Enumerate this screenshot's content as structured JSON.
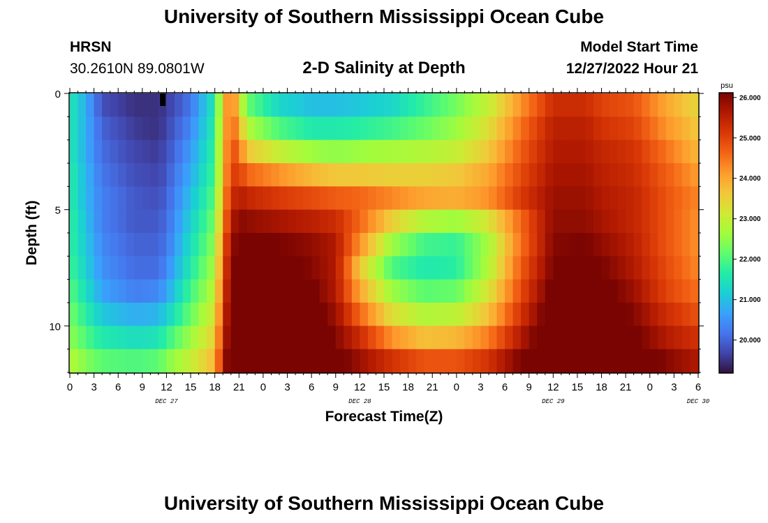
{
  "header": {
    "title": "University of Southern Mississippi Ocean Cube",
    "station": "HRSN",
    "coordinates": "30.2610N  89.0801W",
    "subtitle": "2-D Salinity at Depth",
    "model_start_label": "Model Start Time",
    "model_start_value": "12/27/2022 Hour 21"
  },
  "footer": {
    "title": "University of Southern Mississippi Ocean Cube"
  },
  "chart_data": {
    "type": "heatmap",
    "title": "2-D Salinity at Depth",
    "xlabel": "Forecast Time(Z)",
    "ylabel": "Depth (ft)",
    "x_tick_labels": [
      "0",
      "3",
      "6",
      "9",
      "12",
      "15",
      "18",
      "21",
      "0",
      "3",
      "6",
      "9",
      "12",
      "15",
      "18",
      "21",
      "0",
      "3",
      "6",
      "9",
      "12",
      "15",
      "18",
      "21",
      "0",
      "3",
      "6"
    ],
    "x_day_labels": [
      {
        "label": "DEC 27",
        "at_hour": 12
      },
      {
        "label": "DEC 28",
        "at_hour": 36
      },
      {
        "label": "DEC 29",
        "at_hour": 60
      },
      {
        "label": "DEC 30",
        "at_hour": 78
      }
    ],
    "x_range_hours": [
      0,
      78
    ],
    "y_range_ft": [
      0,
      12
    ],
    "y_ticks": [
      "0",
      "5",
      "10"
    ],
    "colorbar": {
      "unit": "psu",
      "range": [
        19.2,
        26.1
      ],
      "tick_values": [
        20,
        21,
        22,
        23,
        24,
        25,
        26
      ],
      "tick_labels": [
        "20.000",
        "21.000",
        "22.000",
        "23.000",
        "24.000",
        "25.000",
        "26.000"
      ],
      "colors": [
        "#30123b",
        "#4145ab",
        "#4675ed",
        "#39a2fc",
        "#1bcfd4",
        "#24eca6",
        "#61fc6c",
        "#a4fc3b",
        "#d1e834",
        "#f3c63a",
        "#fe9b2d",
        "#f36315",
        "#d93806",
        "#b11901",
        "#7a0402"
      ]
    },
    "salinity_key_hours": [
      0,
      2,
      4,
      8,
      11,
      12,
      15,
      18,
      19,
      20,
      21,
      22,
      26,
      30,
      33,
      36,
      40,
      44,
      48,
      52,
      56,
      60,
      64,
      66,
      70,
      74,
      78
    ],
    "salinity_depth_levels_ft": [
      0.25,
      1.25,
      2.25,
      3.25,
      4.25,
      5.25,
      6.25,
      7.25,
      8.25,
      9.25,
      10.25,
      11.25
    ],
    "salinity_values": [
      [
        21.6,
        20.8,
        19.8,
        19.5,
        19.5,
        19.6,
        20.2,
        21.6,
        23.5,
        24.8,
        23.3,
        22.2,
        21.3,
        21.0,
        21.0,
        21.1,
        21.3,
        21.8,
        22.3,
        23.0,
        24.2,
        25.3,
        25.3,
        25.0,
        24.8,
        24.0,
        23.4
      ],
      [
        21.6,
        20.8,
        20.0,
        19.6,
        19.5,
        19.7,
        20.4,
        21.7,
        23.6,
        24.8,
        24.0,
        22.8,
        22.0,
        21.6,
        21.6,
        21.7,
        21.9,
        22.2,
        22.6,
        23.3,
        24.5,
        25.5,
        25.5,
        25.2,
        25.0,
        24.2,
        23.6
      ],
      [
        21.6,
        20.8,
        20.1,
        19.7,
        19.6,
        19.8,
        20.6,
        21.8,
        23.7,
        24.9,
        24.6,
        23.6,
        23.0,
        22.6,
        22.5,
        22.6,
        22.7,
        22.8,
        23.0,
        23.6,
        24.7,
        25.6,
        25.6,
        25.4,
        25.2,
        24.5,
        23.8
      ],
      [
        21.7,
        20.9,
        20.2,
        19.8,
        19.7,
        19.9,
        20.8,
        21.9,
        23.8,
        25.0,
        25.1,
        24.6,
        24.2,
        23.8,
        23.6,
        23.6,
        23.5,
        23.5,
        23.6,
        24.0,
        24.9,
        25.7,
        25.7,
        25.5,
        25.3,
        24.7,
        24.1
      ],
      [
        21.7,
        20.9,
        20.3,
        19.9,
        19.8,
        20.0,
        21.0,
        22.1,
        24.0,
        25.2,
        25.6,
        25.4,
        25.1,
        24.9,
        24.7,
        24.6,
        24.3,
        24.0,
        23.9,
        24.2,
        25.1,
        25.8,
        25.8,
        25.6,
        25.4,
        24.8,
        24.3
      ],
      [
        21.8,
        21.0,
        20.3,
        19.9,
        19.9,
        20.1,
        21.2,
        22.3,
        24.2,
        25.5,
        26.0,
        25.9,
        25.7,
        25.5,
        25.3,
        24.6,
        23.5,
        22.8,
        22.6,
        23.2,
        24.6,
        25.9,
        25.9,
        25.7,
        25.4,
        24.8,
        24.2
      ],
      [
        21.8,
        21.1,
        20.4,
        20.0,
        20.0,
        20.2,
        21.4,
        22.5,
        24.5,
        25.8,
        26.2,
        26.2,
        26.1,
        25.9,
        25.6,
        24.2,
        22.6,
        21.9,
        21.8,
        22.7,
        24.5,
        26.0,
        26.1,
        25.9,
        25.5,
        24.8,
        24.2
      ],
      [
        21.9,
        21.2,
        20.5,
        20.1,
        20.1,
        20.4,
        21.6,
        22.7,
        24.7,
        26.0,
        26.4,
        26.5,
        26.4,
        26.0,
        25.6,
        23.6,
        22.0,
        21.6,
        21.7,
        22.8,
        24.7,
        26.1,
        26.3,
        26.1,
        25.6,
        24.9,
        24.3
      ],
      [
        22.1,
        21.4,
        20.7,
        20.3,
        20.4,
        20.7,
        21.9,
        22.9,
        24.9,
        26.1,
        26.6,
        26.7,
        26.6,
        26.2,
        25.6,
        24.0,
        22.6,
        22.1,
        22.2,
        23.2,
        24.9,
        26.3,
        26.5,
        26.3,
        25.8,
        25.0,
        24.5
      ],
      [
        22.3,
        21.7,
        21.1,
        20.8,
        20.9,
        21.2,
        22.2,
        23.2,
        25.1,
        26.2,
        26.8,
        26.9,
        26.8,
        26.4,
        25.8,
        24.6,
        23.3,
        22.8,
        22.9,
        23.7,
        25.2,
        26.5,
        26.7,
        26.5,
        26.0,
        25.3,
        24.8
      ],
      [
        22.5,
        22.0,
        21.6,
        21.4,
        21.5,
        21.8,
        22.6,
        23.5,
        25.3,
        26.3,
        27.0,
        27.1,
        27.0,
        26.6,
        26.0,
        25.3,
        24.2,
        23.7,
        23.8,
        24.4,
        25.6,
        26.7,
        26.9,
        26.7,
        26.2,
        25.6,
        25.2
      ],
      [
        22.8,
        22.4,
        22.1,
        22.0,
        22.1,
        22.4,
        23.0,
        23.8,
        25.5,
        26.5,
        27.2,
        27.3,
        27.2,
        26.8,
        26.3,
        25.8,
        25.2,
        24.8,
        24.8,
        25.2,
        26.1,
        27.0,
        27.2,
        27.0,
        26.5,
        26.0,
        25.6
      ]
    ],
    "missing_cell": {
      "hour": 11.5,
      "depth_ft": 0.25
    }
  }
}
